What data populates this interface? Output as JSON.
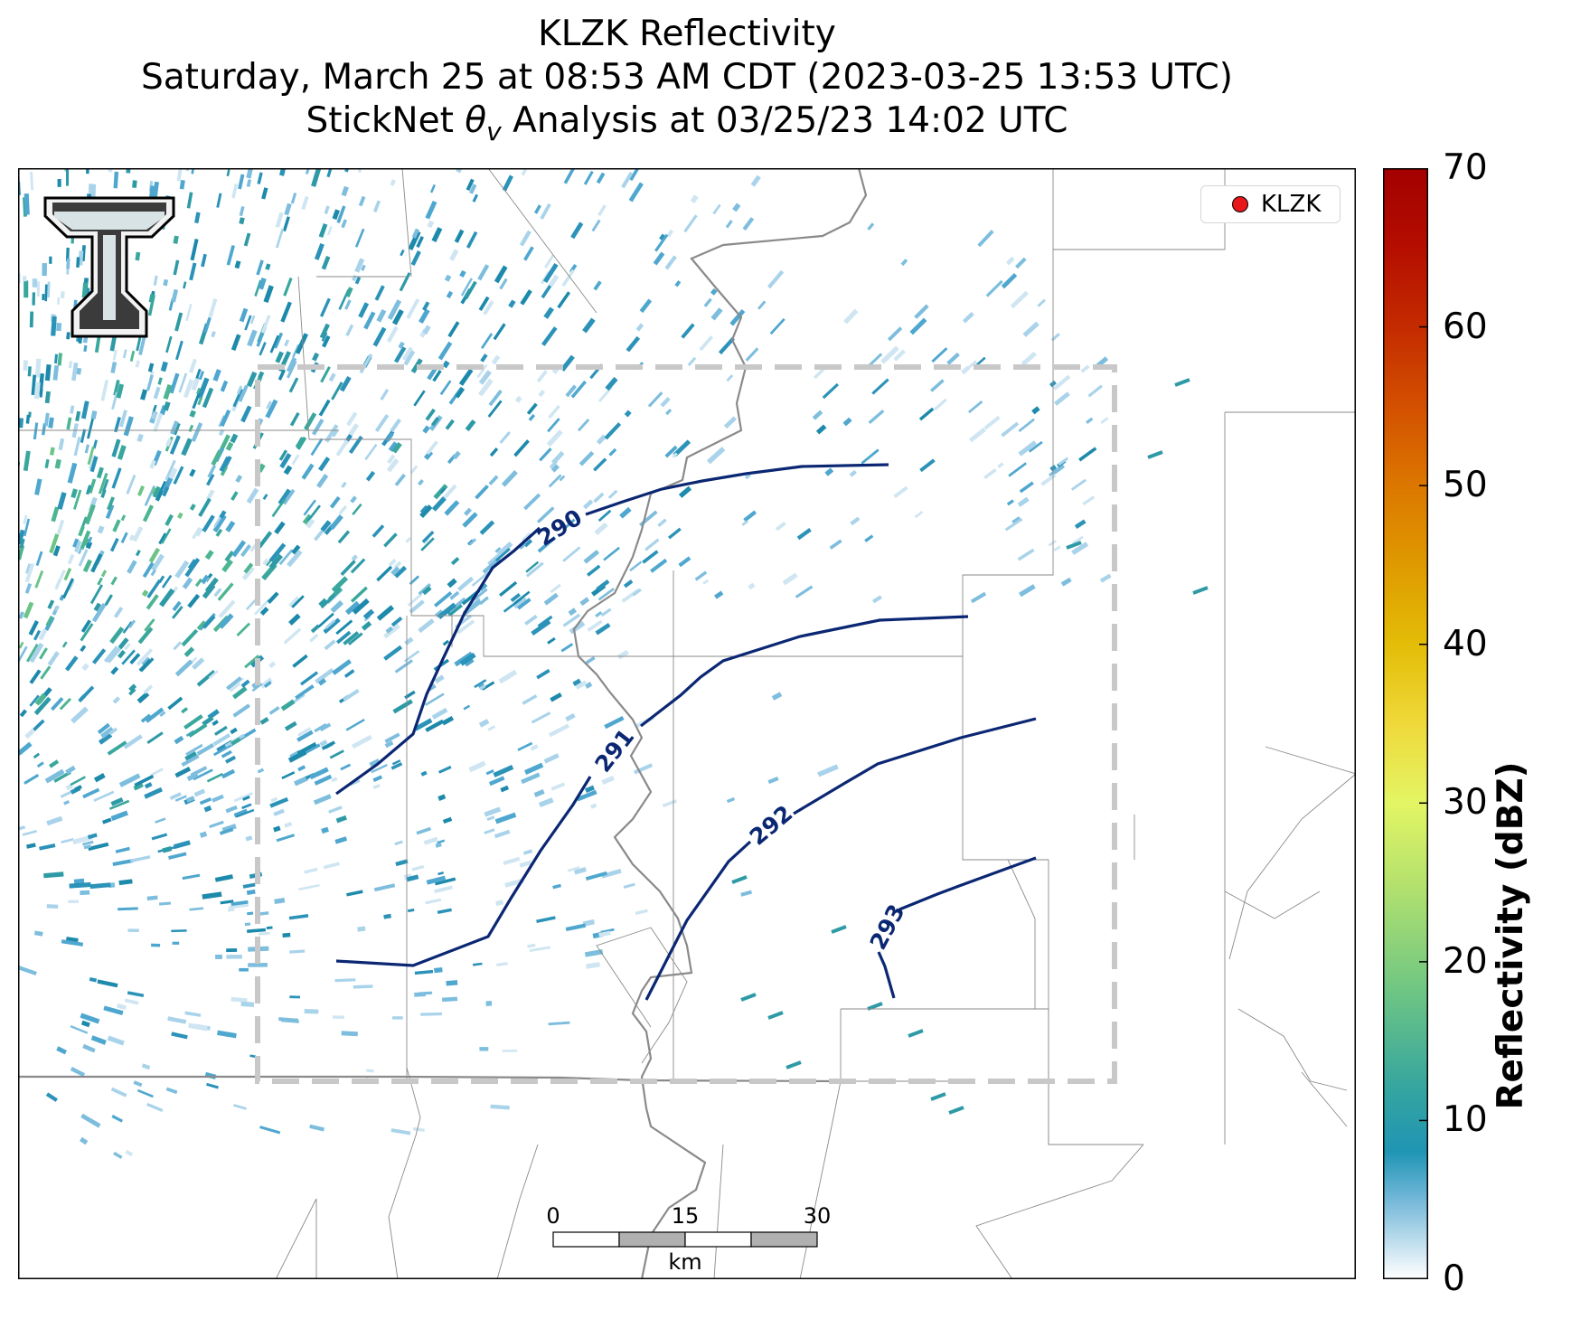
{
  "title": {
    "line1": "KLZK Reflectivity",
    "line2": "Saturday, March 25 at 08:53 AM CDT (2023-03-25 13:53 UTC)",
    "line3_prefix": "StickNet ",
    "line3_theta": "θ",
    "line3_sub": "v",
    "line3_suffix": " Analysis at 03/25/23 14:02 UTC"
  },
  "legend": {
    "label": "KLZK",
    "marker_color": "#e8171a"
  },
  "colorbar": {
    "label": "Reflectivity (dBZ)",
    "ticks": [
      "0",
      "10",
      "20",
      "30",
      "40",
      "50",
      "60",
      "70"
    ],
    "range": [
      0,
      70
    ],
    "stops": [
      {
        "v": 0,
        "c": "#ffffff"
      },
      {
        "v": 5,
        "c": "#73b7d8"
      },
      {
        "v": 8,
        "c": "#1f95b4"
      },
      {
        "v": 12,
        "c": "#35a59f"
      },
      {
        "v": 18,
        "c": "#6dc584"
      },
      {
        "v": 25,
        "c": "#b5e26d"
      },
      {
        "v": 30,
        "c": "#e3f564"
      },
      {
        "v": 35,
        "c": "#efd93a"
      },
      {
        "v": 40,
        "c": "#e3bd07"
      },
      {
        "v": 45,
        "c": "#df9a00"
      },
      {
        "v": 50,
        "c": "#dc7700"
      },
      {
        "v": 55,
        "c": "#d35000"
      },
      {
        "v": 60,
        "c": "#c42b00"
      },
      {
        "v": 65,
        "c": "#b50e00"
      },
      {
        "v": 70,
        "c": "#a30000"
      }
    ]
  },
  "contours": [
    {
      "label": "290",
      "color": "#0b2773"
    },
    {
      "label": "291",
      "color": "#0b2773"
    },
    {
      "label": "292",
      "color": "#0b2773"
    },
    {
      "label": "293",
      "color": "#0b2773"
    }
  ],
  "scale_bar": {
    "ticks": [
      "0",
      "15",
      "30"
    ],
    "unit": "km"
  },
  "logo": {
    "letter": "T"
  }
}
